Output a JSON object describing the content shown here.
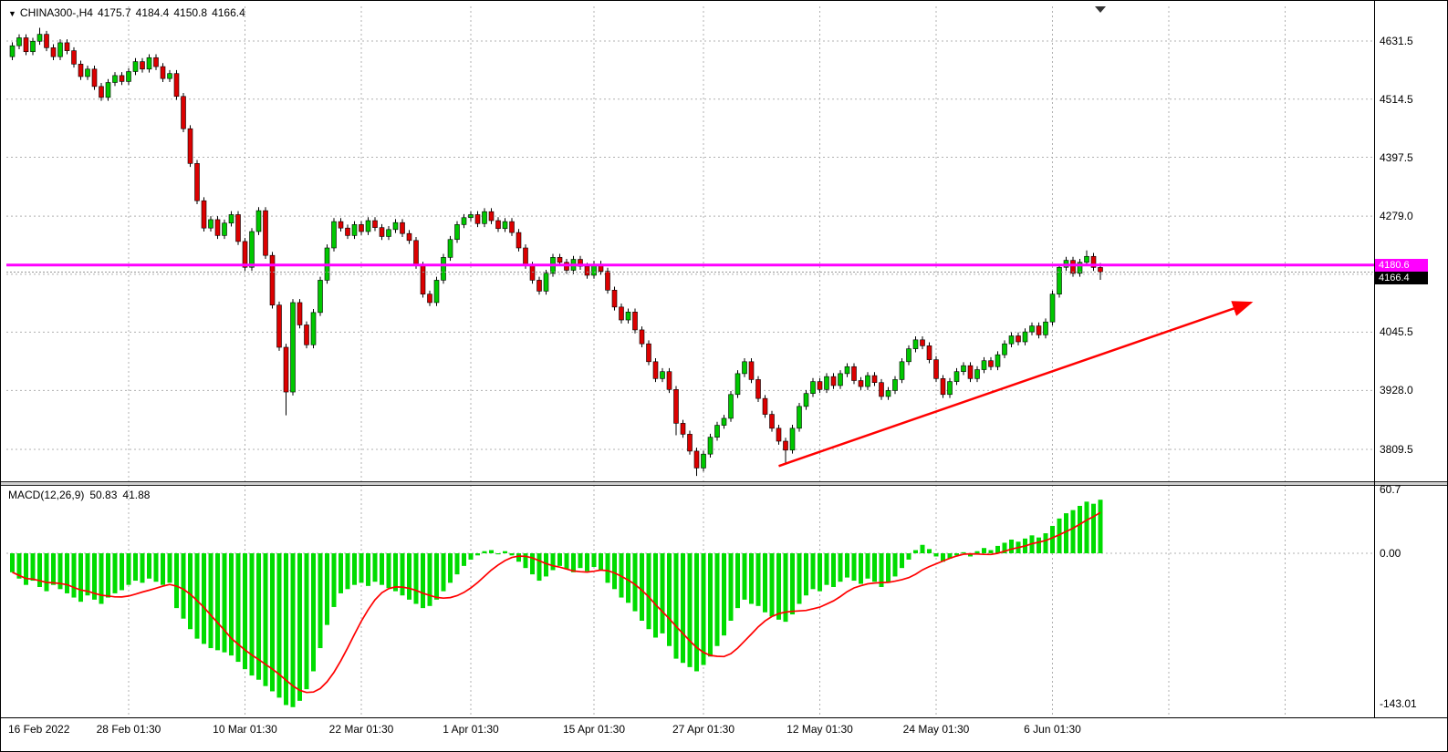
{
  "header": {
    "symbol_period": "CHINA300-,H4",
    "open": "4175.7",
    "high": "4184.4",
    "low": "4150.8",
    "close": "4166.4",
    "dropdown_icon": "symbol-dropdown-triangle"
  },
  "indicator_label": {
    "name": "MACD(12,26,9)",
    "macd": "50.83",
    "signal": "41.88"
  },
  "price_axis": {
    "ticks": [
      {
        "text": "4631.5",
        "price": 4631.5
      },
      {
        "text": "4514.5",
        "price": 4514.5
      },
      {
        "text": "4397.5",
        "price": 4397.5
      },
      {
        "text": "4279.0",
        "price": 4279.0
      },
      {
        "text": "4045.5",
        "price": 4045.5
      },
      {
        "text": "3928.0",
        "price": 3928.0
      },
      {
        "text": "3809.5",
        "price": 3809.5
      }
    ],
    "line_badge": {
      "text": "4180.6",
      "color": "#FF00FF"
    },
    "bid_badge": {
      "text": "4166.4",
      "bg": "#000000"
    }
  },
  "macd_axis": {
    "ticks": [
      {
        "text": "60.7",
        "value": 60.7
      },
      {
        "text": "0.00",
        "value": 0
      },
      {
        "text": "-143.01",
        "value": -143.01
      }
    ]
  },
  "time_axis": {
    "ticks": [
      {
        "text": "16 Feb 2022",
        "index": 0
      },
      {
        "text": "28 Feb 01:30",
        "index": 17
      },
      {
        "text": "10 Mar 01:30",
        "index": 34
      },
      {
        "text": "22 Mar 01:30",
        "index": 51
      },
      {
        "text": "1 Apr 01:30",
        "index": 67
      },
      {
        "text": "15 Apr 01:30",
        "index": 85
      },
      {
        "text": "27 Apr 01:30",
        "index": 101
      },
      {
        "text": "12 May 01:30",
        "index": 118
      },
      {
        "text": "24 May 01:30",
        "index": 135
      },
      {
        "text": "6 Jun 01:30",
        "index": 152
      }
    ],
    "unlabeled_grid_indices": [
      169,
      186
    ]
  },
  "colors": {
    "up": "#00C800",
    "down": "#DC0000",
    "wick": "#000000",
    "grid": "#b0b0b0",
    "macd_hist": "#00DC00",
    "macd_signal": "#FF0000",
    "hline": "#FF00FF",
    "arrow": "#FF0000"
  },
  "chart_data": {
    "type": "candlestick_with_macd",
    "symbol": "CHINA300-",
    "timeframe": "H4",
    "ohlc_display": {
      "open": 4175.7,
      "high": 4184.4,
      "low": 4150.8,
      "close": 4166.4
    },
    "current_price": 4166.4,
    "price_gridlines": [
      4631.5,
      4514.5,
      4397.5,
      4279.0,
      4162.0,
      4045.5,
      3928.0,
      3809.5
    ],
    "horizontal_line": {
      "price": 4180.6,
      "color": "#FF00FF"
    },
    "trend_arrow": {
      "x1_index": 112,
      "y1_price": 3776,
      "x2_index": 181,
      "y2_price": 4105,
      "color": "#FF0000"
    },
    "candles": {
      "open_first": 4600,
      "default_wick": 7,
      "closes": [
        4622,
        4638,
        4610,
        4631,
        4645,
        4618,
        4600,
        4628,
        4612,
        4585,
        4560,
        4575,
        4540,
        4518,
        4548,
        4562,
        4550,
        4570,
        4590,
        4575,
        4598,
        4580,
        4556,
        4566,
        4520,
        4455,
        4385,
        4310,
        4255,
        4272,
        4240,
        4265,
        4282,
        4228,
        4176,
        4248,
        4290,
        4200,
        4100,
        4015,
        3925,
        4105,
        4060,
        4020,
        4085,
        4150,
        4215,
        4268,
        4255,
        4240,
        4262,
        4248,
        4270,
        4256,
        4238,
        4252,
        4266,
        4244,
        4230,
        4180,
        4122,
        4105,
        4150,
        4196,
        4232,
        4262,
        4276,
        4282,
        4264,
        4288,
        4270,
        4254,
        4268,
        4246,
        4215,
        4180,
        4150,
        4128,
        4164,
        4196,
        4186,
        4170,
        4192,
        4178,
        4160,
        4182,
        4168,
        4130,
        4096,
        4070,
        4086,
        4050,
        4022,
        3986,
        3952,
        3966,
        3930,
        3862,
        3840,
        3806,
        3772,
        3800,
        3834,
        3858,
        3872,
        3920,
        3962,
        3986,
        3950,
        3912,
        3880,
        3852,
        3826,
        3808,
        3852,
        3896,
        3922,
        3946,
        3930,
        3956,
        3938,
        3962,
        3976,
        3948,
        3936,
        3958,
        3944,
        3916,
        3928,
        3950,
        3986,
        4012,
        4030,
        4018,
        3990,
        3952,
        3920,
        3946,
        3966,
        3978,
        3952,
        3970,
        3988,
        3976,
        4000,
        4022,
        4038,
        4026,
        4046,
        4058,
        4040,
        4066,
        4122,
        4176,
        4190,
        4164,
        4186,
        4198,
        4175.7,
        4166.4
      ],
      "high_overrides": {
        "4": 4658,
        "157": 4210,
        "159": 4184.4
      },
      "low_overrides": {
        "40": 3878,
        "97": 3838,
        "100": 3756,
        "113": 3782,
        "159": 4150.8
      }
    },
    "macd": {
      "label": "MACD(12,26,9)",
      "macd_value": 50.83,
      "signal_value": 41.88,
      "axis_values": [
        60.7,
        0.0,
        -143.01
      ],
      "values": [
        -18,
        -24,
        -30,
        -26,
        -32,
        -36,
        -30,
        -34,
        -38,
        -42,
        -46,
        -40,
        -44,
        -48,
        -42,
        -38,
        -35,
        -30,
        -26,
        -28,
        -24,
        -27,
        -30,
        -28,
        -52,
        -62,
        -72,
        -81,
        -86,
        -90,
        -92,
        -94,
        -97,
        -103,
        -110,
        -116,
        -120,
        -126,
        -131,
        -137,
        -144,
        -146,
        -140,
        -129,
        -112,
        -90,
        -68,
        -51,
        -38,
        -34,
        -30,
        -28,
        -31,
        -27,
        -30,
        -33,
        -36,
        -40,
        -44,
        -48,
        -52,
        -50,
        -44,
        -36,
        -28,
        -20,
        -12,
        -6,
        -2,
        2,
        3,
        -1,
        2,
        -2,
        -8,
        -14,
        -20,
        -26,
        -22,
        -16,
        -12,
        -15,
        -18,
        -14,
        -17,
        -13,
        -16,
        -28,
        -34,
        -42,
        -47,
        -55,
        -64,
        -72,
        -80,
        -76,
        -88,
        -100,
        -104,
        -108,
        -112,
        -106,
        -98,
        -88,
        -78,
        -64,
        -52,
        -44,
        -48,
        -50,
        -56,
        -60,
        -63,
        -65,
        -58,
        -48,
        -40,
        -34,
        -36,
        -30,
        -32,
        -27,
        -23,
        -26,
        -29,
        -24,
        -27,
        -32,
        -28,
        -22,
        -14,
        -6,
        3,
        8,
        4,
        -3,
        -8,
        -5,
        -2,
        1,
        -3,
        2,
        5,
        3,
        7,
        10,
        13,
        11,
        14,
        17,
        15,
        19,
        26,
        33,
        38,
        41,
        45,
        49,
        47,
        50.83
      ]
    }
  }
}
